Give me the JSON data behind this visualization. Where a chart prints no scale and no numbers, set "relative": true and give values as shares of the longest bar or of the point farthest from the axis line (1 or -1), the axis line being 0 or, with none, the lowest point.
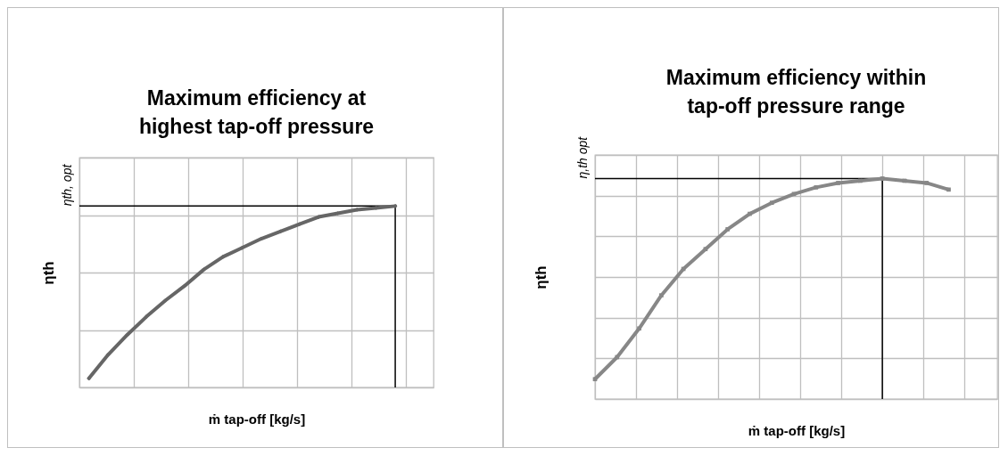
{
  "chart_data": [
    {
      "type": "line",
      "relative": true,
      "title": "Maximum efficiency at highest tap-off pressure",
      "xlabel": "ṁ tap-off [kg/s]",
      "ylabel": "ηth",
      "categories": [
        null,
        null,
        null,
        null,
        null,
        null,
        null,
        null,
        null,
        null,
        null,
        null,
        null,
        null,
        null,
        null,
        null
      ],
      "values": [
        0.05,
        0.18,
        0.29,
        0.39,
        0.48,
        0.56,
        0.65,
        0.72,
        0.77,
        0.82,
        0.86,
        0.9,
        0.94,
        0.96,
        0.98,
        0.99,
        1.0
      ],
      "color": "#666666",
      "marker": "diamond",
      "grid": true,
      "ref_lines": [
        {
          "axis": "y",
          "value": 1,
          "label": "ηth, opt",
          "color": "#000000"
        }
      ]
    },
    {
      "type": "line",
      "relative": true,
      "title": "Maximum efficiency within tap-off pressure range",
      "xlabel": "ṁ tap-off [kg/s]",
      "ylabel": "ηth",
      "categories": [
        null,
        null,
        null,
        null,
        null,
        null,
        null,
        null,
        null,
        null,
        null,
        null,
        null,
        null,
        null,
        null,
        null
      ],
      "values": [
        0.09,
        0.19,
        0.32,
        0.47,
        0.59,
        0.68,
        0.77,
        0.84,
        0.89,
        0.93,
        0.96,
        0.98,
        0.99,
        1.0,
        0.99,
        0.98,
        0.95
      ],
      "color": "#878787",
      "marker": "square",
      "grid": true,
      "ref_lines": [
        {
          "axis": "y",
          "value": 1,
          "label": "η,th opt",
          "color": "#000000"
        }
      ]
    }
  ]
}
